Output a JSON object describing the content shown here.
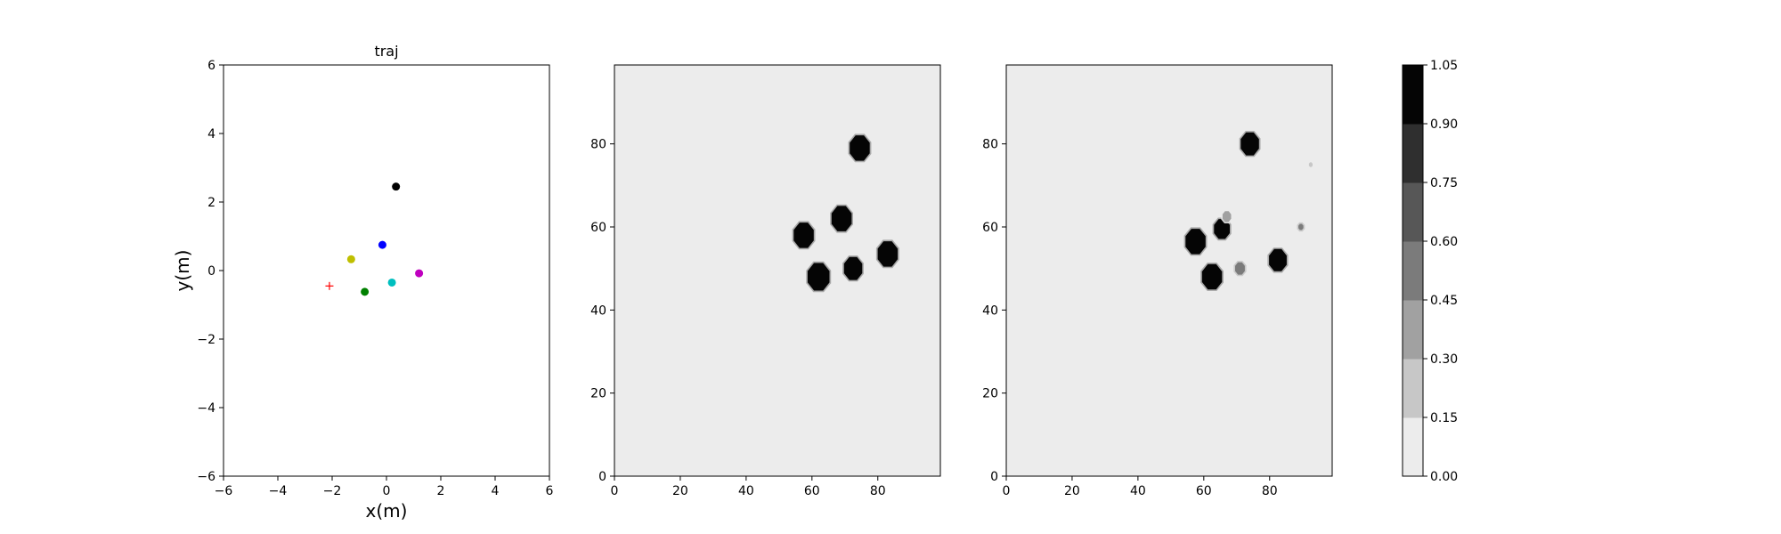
{
  "chart_data": [
    {
      "type": "scatter",
      "title": "traj",
      "xlabel": "x(m)",
      "ylabel": "y(m)",
      "xlim": [
        -6,
        6
      ],
      "ylim": [
        -6,
        6
      ],
      "xticks": [
        -6,
        -4,
        -2,
        0,
        2,
        4,
        6
      ],
      "yticks": [
        -6,
        -4,
        -2,
        0,
        2,
        4,
        6
      ],
      "xtick_labels": [
        "−6",
        "−4",
        "−2",
        "0",
        "2",
        "4",
        "6"
      ],
      "ytick_labels": [
        "−6",
        "−4",
        "−2",
        "0",
        "2",
        "4",
        "6"
      ],
      "grid": false,
      "points": [
        {
          "x": 0.35,
          "y": 2.45,
          "color": "#000000",
          "marker": "circle"
        },
        {
          "x": -0.15,
          "y": 0.75,
          "color": "#0000ff",
          "marker": "circle"
        },
        {
          "x": -1.3,
          "y": 0.33,
          "color": "#bfbf00",
          "marker": "circle"
        },
        {
          "x": 1.2,
          "y": -0.08,
          "color": "#bf00bf",
          "marker": "circle"
        },
        {
          "x": 0.2,
          "y": -0.35,
          "color": "#00bfbf",
          "marker": "circle"
        },
        {
          "x": -0.8,
          "y": -0.62,
          "color": "#008000",
          "marker": "circle"
        },
        {
          "x": -2.1,
          "y": -0.45,
          "color": "#ff0000",
          "marker": "plus"
        }
      ]
    },
    {
      "type": "heatmap",
      "title": "",
      "xlim": [
        0,
        99
      ],
      "ylim": [
        0,
        99
      ],
      "xticks": [
        0,
        20,
        40,
        60,
        80
      ],
      "yticks": [
        0,
        20,
        40,
        60,
        80
      ],
      "background_color": "#ececec",
      "blobs": [
        {
          "x": 74.5,
          "y": 79,
          "r": 3.3,
          "level": 1.0
        },
        {
          "x": 69,
          "y": 62,
          "r": 3.3,
          "level": 1.0
        },
        {
          "x": 57.5,
          "y": 58,
          "r": 3.3,
          "level": 1.0
        },
        {
          "x": 83,
          "y": 53.5,
          "r": 3.3,
          "level": 1.0
        },
        {
          "x": 72.5,
          "y": 50,
          "r": 3.0,
          "level": 1.0
        },
        {
          "x": 62,
          "y": 48,
          "r": 3.6,
          "level": 1.0
        }
      ]
    },
    {
      "type": "heatmap",
      "title": "",
      "xlim": [
        0,
        99
      ],
      "ylim": [
        0,
        99
      ],
      "xticks": [
        0,
        20,
        40,
        60,
        80
      ],
      "yticks": [
        0,
        20,
        40,
        60,
        80
      ],
      "background_color": "#ececec",
      "blobs": [
        {
          "x": 74,
          "y": 80,
          "r": 3.0,
          "level": 1.0
        },
        {
          "x": 65.5,
          "y": 59.5,
          "r": 2.6,
          "level": 1.0
        },
        {
          "x": 57.5,
          "y": 56.5,
          "r": 3.3,
          "level": 1.0
        },
        {
          "x": 62.5,
          "y": 48,
          "r": 3.3,
          "level": 1.0
        },
        {
          "x": 82.5,
          "y": 52,
          "r": 2.9,
          "level": 1.0
        },
        {
          "x": 71,
          "y": 50,
          "r": 1.6,
          "level": 0.5
        },
        {
          "x": 67,
          "y": 62.5,
          "r": 1.4,
          "level": 0.3
        },
        {
          "x": 89.5,
          "y": 60,
          "r": 0.8,
          "level": 0.45
        },
        {
          "x": 92.5,
          "y": 75,
          "r": 0.6,
          "level": 0.25
        }
      ]
    }
  ],
  "colorbar": {
    "levels": [
      "0.00",
      "0.15",
      "0.30",
      "0.45",
      "0.60",
      "0.75",
      "0.90",
      "1.05"
    ],
    "colors": [
      "#ececec",
      "#c7c7c7",
      "#a1a1a1",
      "#7b7b7b",
      "#575757",
      "#2f2f2f",
      "#050505"
    ]
  }
}
